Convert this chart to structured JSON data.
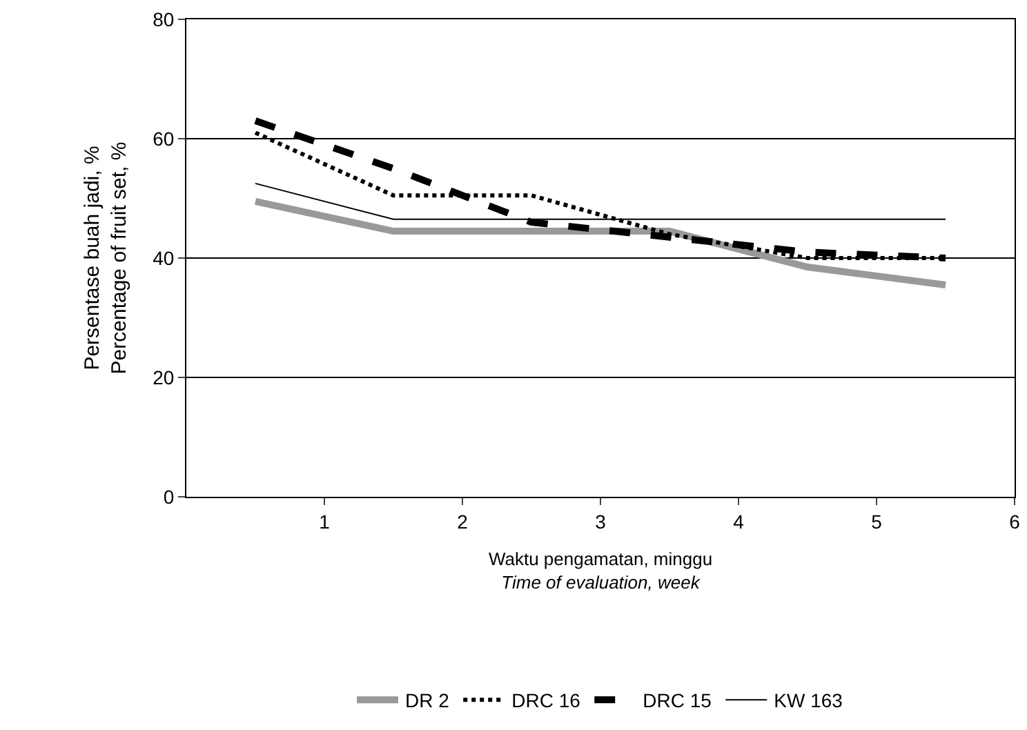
{
  "chart_data": {
    "type": "line",
    "xlabel": "Waktu pengamatan, minggu\nTime of evaluation, week",
    "ylabel": "Persentase buah jadi, %\nPercentage of fruit set, %",
    "x": [
      0.5,
      1.5,
      2.5,
      3.5,
      4.5,
      5.5
    ],
    "series": [
      {
        "name": "DR 2",
        "color": "#999999",
        "line_style": "solid",
        "values": [
          49.5,
          44.5,
          44.5,
          44.5,
          38.5,
          35.5
        ]
      },
      {
        "name": "DRC 16",
        "color": "#000000",
        "line_style": "dotted",
        "values": [
          61,
          50.5,
          50.5,
          44,
          40,
          40
        ]
      },
      {
        "name": "DRC 15",
        "color": "#000000",
        "line_style": "dashed",
        "values": [
          63,
          55,
          46,
          43.5,
          41,
          40
        ]
      },
      {
        "name": "KW 163",
        "color": "#000000",
        "line_style": "solid",
        "values": [
          52.5,
          46.5,
          46.5,
          46.5,
          46.5,
          46.5
        ]
      }
    ],
    "xlim": [
      0,
      6
    ],
    "xticks": [
      1,
      2,
      3,
      4,
      5,
      6
    ],
    "ylim": [
      0,
      80
    ],
    "yticks": [
      0,
      20,
      40,
      60,
      80
    ],
    "grid": "y",
    "legend": "bottom",
    "marker": "none"
  }
}
